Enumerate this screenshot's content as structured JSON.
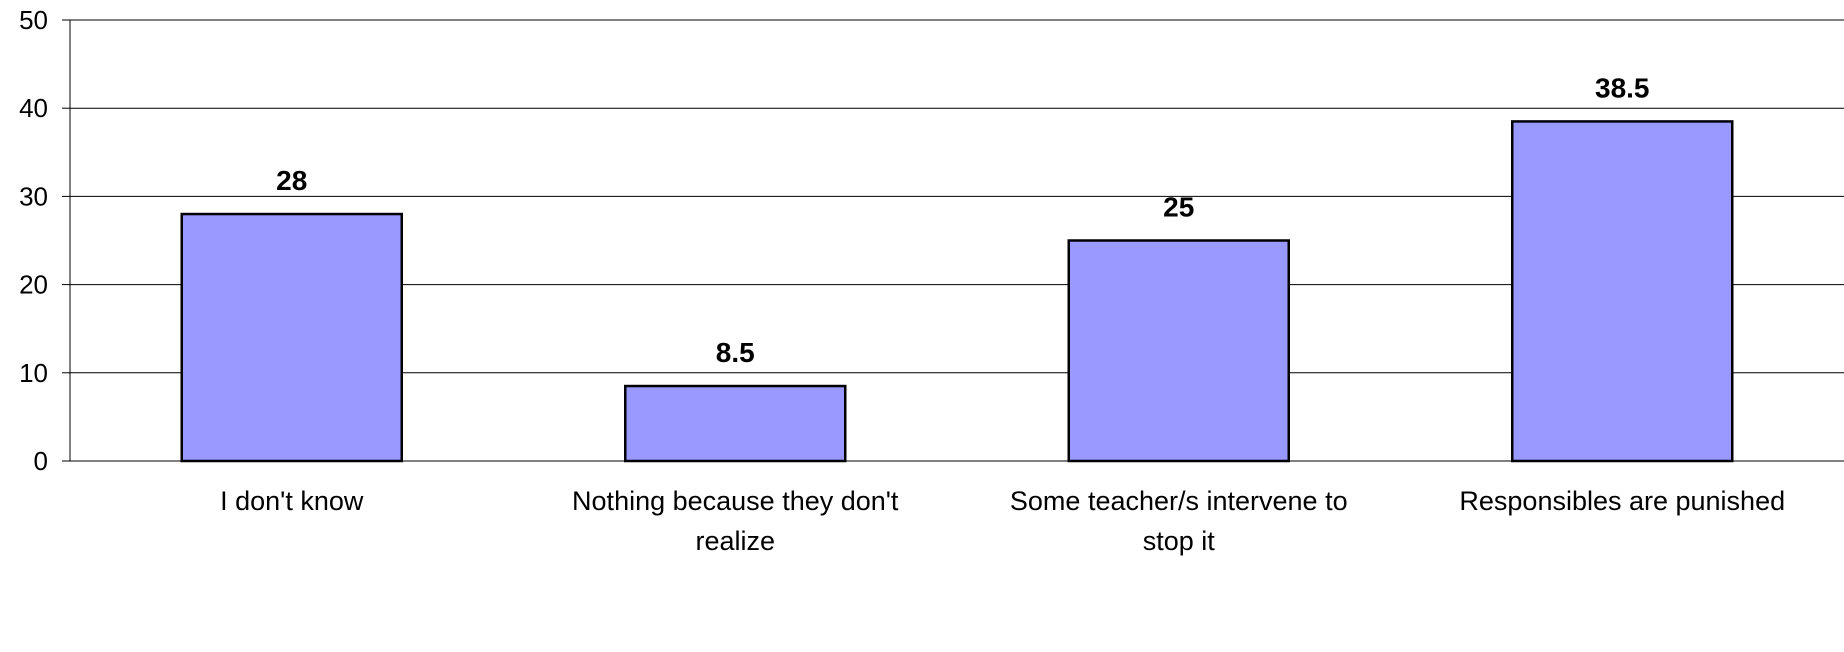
{
  "chart_data": {
    "type": "bar",
    "categories": [
      [
        "I don't know"
      ],
      [
        "Nothing because they don't",
        "realize"
      ],
      [
        "Some teacher/s intervene to",
        "stop it"
      ],
      [
        "Responsibles are punished"
      ]
    ],
    "values": [
      28,
      8.5,
      25,
      38.5
    ],
    "value_labels": [
      "28",
      "8.5",
      "25",
      "38.5"
    ],
    "title": "",
    "xlabel": "",
    "ylabel": "",
    "ylim": [
      0,
      50
    ],
    "yticks": [
      0,
      10,
      20,
      30,
      40,
      50
    ],
    "grid": true,
    "legend": "none",
    "colors": {
      "bar_fill": "#9999ff",
      "bar_stroke": "#000000",
      "grid": "#000000",
      "background": "#ffffff"
    }
  }
}
